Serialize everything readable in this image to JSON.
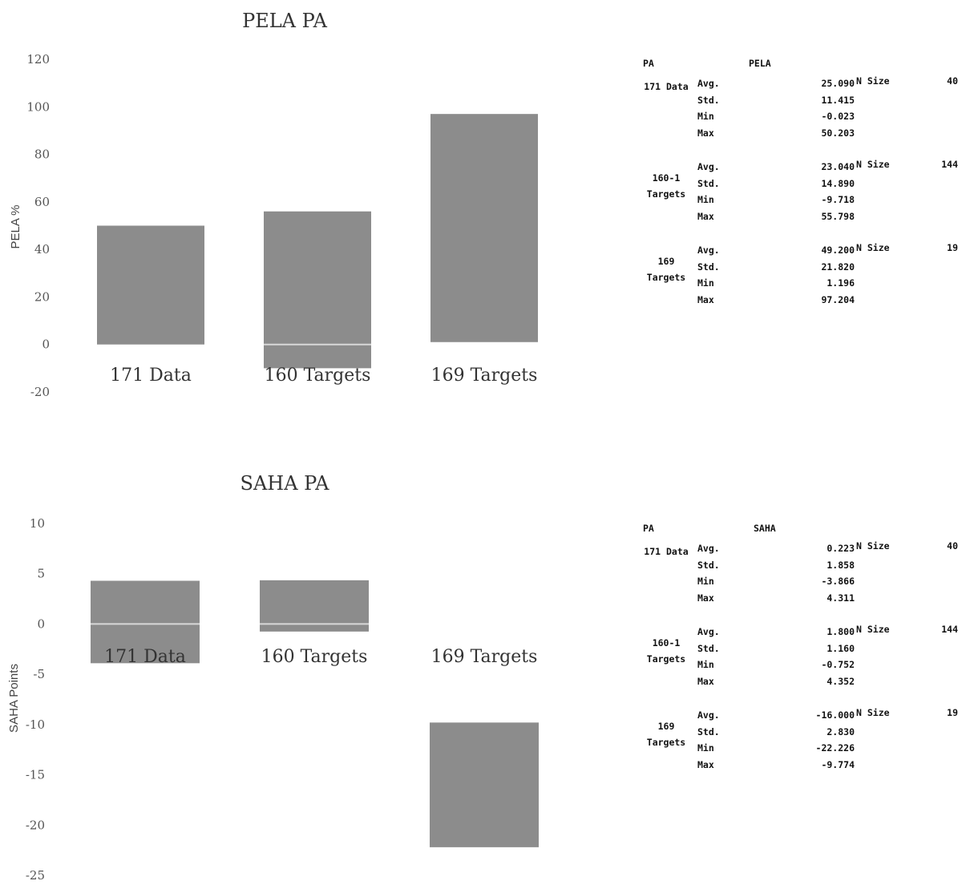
{
  "chart_data": [
    {
      "type": "bar",
      "title": "PELA PA",
      "ylabel": "PELA %",
      "ylim": [
        -20,
        120
      ],
      "yticks": [
        "-20",
        "0",
        "20",
        "40",
        "60",
        "80",
        "100",
        "120"
      ],
      "categories": [
        "171 Data",
        "160 Targets",
        "169 Targets"
      ],
      "bars": [
        {
          "low": 0,
          "high": 50
        },
        {
          "low": -10,
          "high": 56
        },
        {
          "low": 1,
          "high": 97
        }
      ],
      "avg_line": [
        null,
        0,
        null
      ],
      "color": "#8c8c8c",
      "grid": false
    },
    {
      "type": "bar",
      "title": "SAHA PA",
      "ylabel": "SAHA Points",
      "ylim": [
        -25,
        10
      ],
      "yticks": [
        "-25",
        "-20",
        "-15",
        "-10",
        "-5",
        "0",
        "5",
        "10"
      ],
      "categories": [
        "171 Data",
        "160 Targets",
        "169 Targets"
      ],
      "bars": [
        {
          "low": -3.9,
          "high": 4.3
        },
        {
          "low": -0.75,
          "high": 4.35
        },
        {
          "low": -22.2,
          "high": -9.8
        }
      ],
      "avg_line": [
        0,
        0,
        null
      ],
      "color": "#8c8c8c",
      "grid": false
    }
  ],
  "tables": [
    {
      "col1": "PA",
      "col2": "PELA",
      "groups": [
        {
          "name": "171 Data",
          "n_label": "N Size",
          "n": "40",
          "rows": [
            [
              "Avg.",
              "25.090"
            ],
            [
              "Std.",
              "11.415"
            ],
            [
              "Min",
              "-0.023"
            ],
            [
              "Max",
              "50.203"
            ]
          ]
        },
        {
          "name": "160-1 Targets",
          "n_label": "N Size",
          "n": "144",
          "rows": [
            [
              "Avg.",
              "23.040"
            ],
            [
              "Std.",
              "14.890"
            ],
            [
              "Min",
              "-9.718"
            ],
            [
              "Max",
              "55.798"
            ]
          ]
        },
        {
          "name": "169 Targets",
          "n_label": "N Size",
          "n": "19",
          "rows": [
            [
              "Avg.",
              "49.200"
            ],
            [
              "Std.",
              "21.820"
            ],
            [
              "Min",
              "1.196"
            ],
            [
              "Max",
              "97.204"
            ]
          ]
        }
      ]
    },
    {
      "col1": "PA",
      "col2": "SAHA",
      "groups": [
        {
          "name": "171 Data",
          "n_label": "N Size",
          "n": "40",
          "rows": [
            [
              "Avg.",
              "0.223"
            ],
            [
              "Std.",
              "1.858"
            ],
            [
              "Min",
              "-3.866"
            ],
            [
              "Max",
              "4.311"
            ]
          ]
        },
        {
          "name": "160-1 Targets",
          "n_label": "N Size",
          "n": "144",
          "rows": [
            [
              "Avg.",
              "1.800"
            ],
            [
              "Std.",
              "1.160"
            ],
            [
              "Min",
              "-0.752"
            ],
            [
              "Max",
              "4.352"
            ]
          ]
        },
        {
          "name": "169 Targets",
          "n_label": "N Size",
          "n": "19",
          "rows": [
            [
              "Avg.",
              "-16.000"
            ],
            [
              "Std.",
              "2.830"
            ],
            [
              "Min",
              "-22.226"
            ],
            [
              "Max",
              "-9.774"
            ]
          ]
        }
      ]
    }
  ]
}
